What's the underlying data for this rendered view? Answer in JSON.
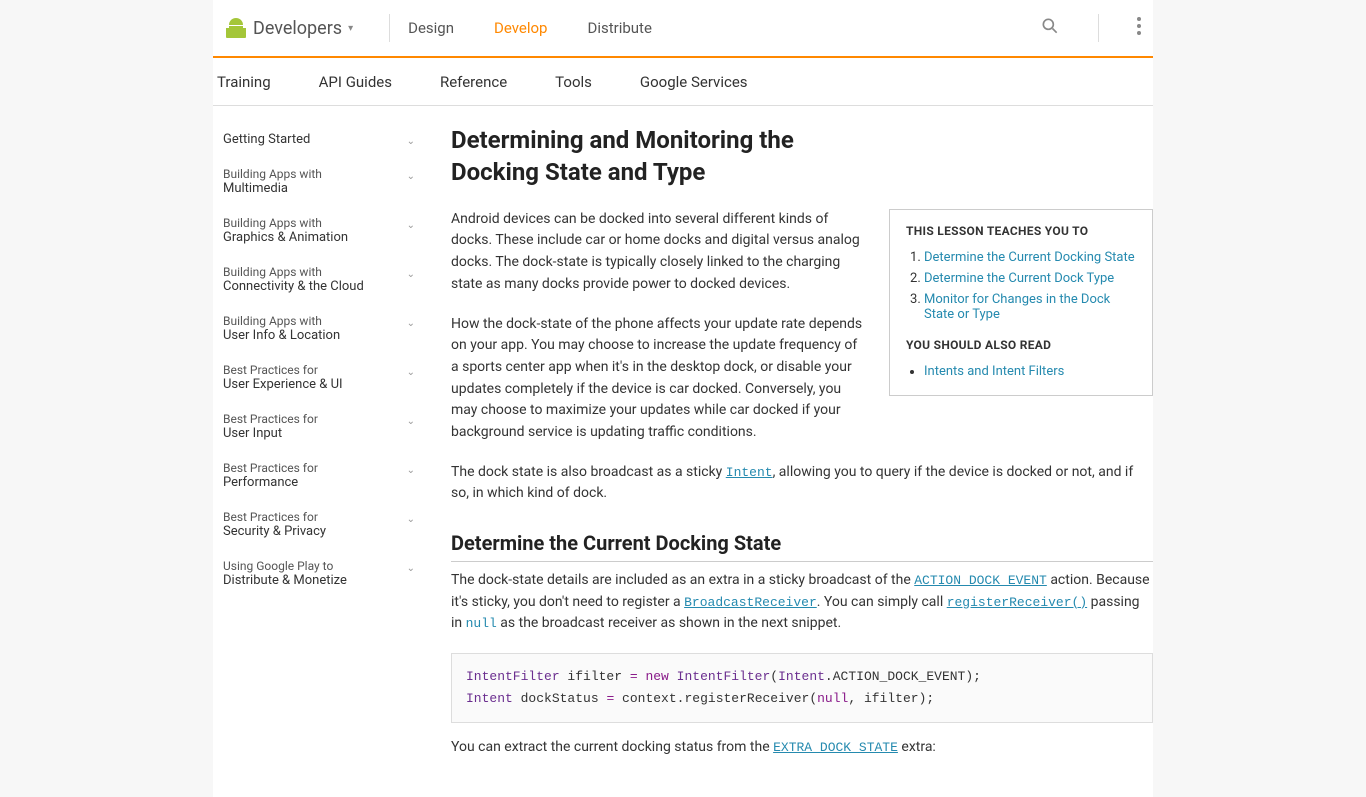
{
  "brand": "Developers",
  "topnav": {
    "design": "Design",
    "develop": "Develop",
    "distribute": "Distribute"
  },
  "subnav": {
    "training": "Training",
    "api": "API Guides",
    "reference": "Reference",
    "tools": "Tools",
    "services": "Google Services"
  },
  "sidebar": [
    {
      "l1": "",
      "l2": "Getting Started"
    },
    {
      "l1": "Building Apps with",
      "l2": "Multimedia"
    },
    {
      "l1": "Building Apps with",
      "l2": "Graphics & Animation"
    },
    {
      "l1": "Building Apps with",
      "l2": "Connectivity & the Cloud"
    },
    {
      "l1": "Building Apps with",
      "l2": "User Info & Location"
    },
    {
      "l1": "Best Practices for",
      "l2": "User Experience & UI"
    },
    {
      "l1": "Best Practices for",
      "l2": "User Input"
    },
    {
      "l1": "Best Practices for",
      "l2": "Performance"
    },
    {
      "l1": "Best Practices for",
      "l2": "Security & Privacy"
    },
    {
      "l1": "Using Google Play to",
      "l2": "Distribute & Monetize"
    }
  ],
  "article": {
    "title": "Determining and Monitoring the Docking State and Type",
    "p1": "Android devices can be docked into several different kinds of docks. These include car or home docks and digital versus analog docks. The dock-state is typically closely linked to the charging state as many docks provide power to docked devices.",
    "p2": "How the dock-state of the phone affects your update rate depends on your app. You may choose to increase the update frequency of a sports center app when it's in the desktop dock, or disable your updates completely if the device is car docked. Conversely, you may choose to maximize your updates while car docked if your background service is updating traffic conditions.",
    "p3a": "The dock state is also broadcast as a sticky ",
    "p3code": "Intent",
    "p3b": ", allowing you to query if the device is docked or not, and if so, in which kind of dock.",
    "h2": "Determine the Current Docking State",
    "p4a": "The dock-state details are included as an extra in a sticky broadcast of the ",
    "p4code1": "ACTION_DOCK_EVENT",
    "p4b": " action. Because it's sticky, you don't need to register a ",
    "p4code2": "BroadcastReceiver",
    "p4c": ". You can simply call ",
    "p4code3": "registerReceiver()",
    "p4d": " passing in ",
    "p4code4": "null",
    "p4e": " as the broadcast receiver as shown in the next snippet.",
    "p5a": "You can extract the current docking status from the ",
    "p5code": "EXTRA_DOCK_STATE",
    "p5b": " extra:"
  },
  "lesson": {
    "h1": "THIS LESSON TEACHES YOU TO",
    "items": [
      "Determine the Current Docking State",
      "Determine the Current Dock Type",
      "Monitor for Changes in the Dock State or Type"
    ],
    "h2": "YOU SHOULD ALSO READ",
    "read": [
      "Intents and Intent Filters"
    ]
  },
  "code": {
    "line1_typ1": "IntentFilter",
    "line1_var": " ifilter ",
    "line1_eq": "=",
    "line1_kw": " new ",
    "line1_typ2": "IntentFilter",
    "line1_open": "(",
    "line1_arg": "Intent",
    "line1_dot": ".",
    "line1_const": "ACTION_DOCK_EVENT",
    "line1_close": ");",
    "line2_typ": "Intent",
    "line2_rest": " dockStatus ",
    "line2_eq": "=",
    "line2_rest2": " context",
    "line2_dot": ".",
    "line2_m": "registerReceiver",
    "line2_open": "(",
    "line2_null": "null",
    "line2_comma": ",",
    "line2_arg2": " ifilter",
    "line2_close": ");"
  },
  "colors": {
    "accent": "#f80",
    "link": "#258aaf",
    "background": "#f7f7f7",
    "border": "#ddd",
    "text": "#333"
  }
}
